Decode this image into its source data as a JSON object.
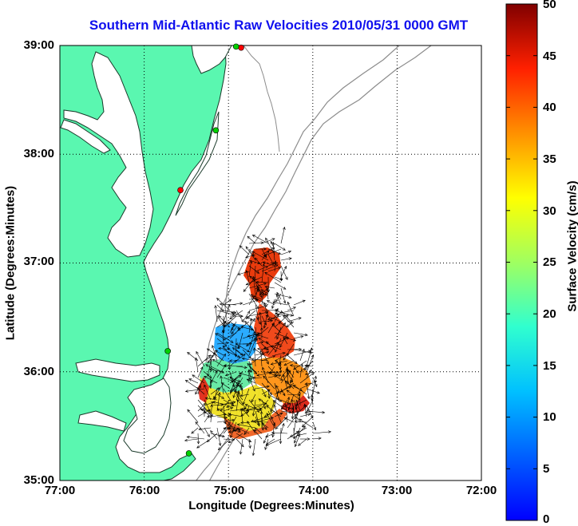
{
  "title": "Southern Mid-Atlantic Raw Velocities 2010/05/31 0000 GMT",
  "axes": {
    "xlabel": "Longitude (Degrees:Minutes)",
    "ylabel": "Latitude (Degrees:Minutes)",
    "x_ticks": [
      "77:00",
      "76:00",
      "75:00",
      "74:00",
      "73:00",
      "72:00"
    ],
    "y_ticks": [
      "39:00",
      "38:00",
      "37:00",
      "36:00",
      "35:00"
    ],
    "grid": "dotted"
  },
  "colorbar": {
    "label": "Surface Velocity (cm/s)",
    "ticks": [
      "50",
      "45",
      "40",
      "35",
      "30",
      "25",
      "20",
      "15",
      "10",
      "5",
      "0"
    ],
    "range": [
      0,
      50
    ],
    "colormap": "jet"
  },
  "colors": {
    "land": "#5af7b0",
    "coastline": "#000000",
    "bathymetry": "#8c8c8c",
    "title": "#1010ee",
    "station_active": "#00d000",
    "station_inactive": "#ff0000"
  },
  "chart_data": {
    "type": "map",
    "xlim": [
      -77,
      -72
    ],
    "ylim": [
      35,
      39
    ],
    "stations": [
      {
        "lon": -74.85,
        "lat": 38.98,
        "status": "inactive"
      },
      {
        "lon": -74.91,
        "lat": 38.99,
        "status": "active"
      },
      {
        "lon": -75.15,
        "lat": 38.22,
        "status": "active"
      },
      {
        "lon": -75.57,
        "lat": 37.67,
        "status": "inactive"
      },
      {
        "lon": -75.72,
        "lat": 36.19,
        "status": "active"
      },
      {
        "lon": -75.47,
        "lat": 35.25,
        "status": "active"
      }
    ]
  }
}
